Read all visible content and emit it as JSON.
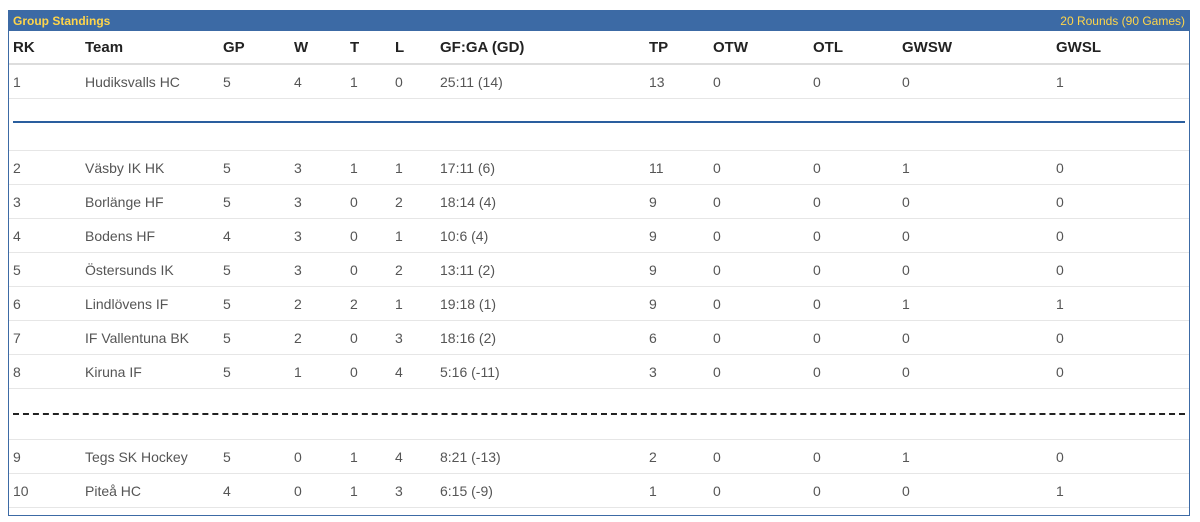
{
  "header": {
    "title": "Group Standings",
    "meta": "20 Rounds (90 Games)"
  },
  "columns": {
    "rk": "RK",
    "team": "Team",
    "gp": "GP",
    "w": "W",
    "t": "T",
    "l": "L",
    "gf": "GF:GA (GD)",
    "tp": "TP",
    "otw": "OTW",
    "otl": "OTL",
    "gwsw": "GWSW",
    "gwsl": "GWSL"
  },
  "rows": [
    {
      "rk": "1",
      "team": "Hudiksvalls HC",
      "gp": "5",
      "w": "4",
      "t": "1",
      "l": "0",
      "gf": "25:11 (14)",
      "tp": "13",
      "otw": "0",
      "otl": "0",
      "gwsw": "0",
      "gwsl": "1"
    },
    {
      "rk": "2",
      "team": "Väsby IK HK",
      "gp": "5",
      "w": "3",
      "t": "1",
      "l": "1",
      "gf": "17:11 (6)",
      "tp": "11",
      "otw": "0",
      "otl": "0",
      "gwsw": "1",
      "gwsl": "0"
    },
    {
      "rk": "3",
      "team": "Borlänge HF",
      "gp": "5",
      "w": "3",
      "t": "0",
      "l": "2",
      "gf": "18:14 (4)",
      "tp": "9",
      "otw": "0",
      "otl": "0",
      "gwsw": "0",
      "gwsl": "0"
    },
    {
      "rk": "4",
      "team": "Bodens HF",
      "gp": "4",
      "w": "3",
      "t": "0",
      "l": "1",
      "gf": "10:6 (4)",
      "tp": "9",
      "otw": "0",
      "otl": "0",
      "gwsw": "0",
      "gwsl": "0"
    },
    {
      "rk": "5",
      "team": "Östersunds IK",
      "gp": "5",
      "w": "3",
      "t": "0",
      "l": "2",
      "gf": "13:11 (2)",
      "tp": "9",
      "otw": "0",
      "otl": "0",
      "gwsw": "0",
      "gwsl": "0"
    },
    {
      "rk": "6",
      "team": "Lindlövens IF",
      "gp": "5",
      "w": "2",
      "t": "2",
      "l": "1",
      "gf": "19:18 (1)",
      "tp": "9",
      "otw": "0",
      "otl": "0",
      "gwsw": "1",
      "gwsl": "1"
    },
    {
      "rk": "7",
      "team": "IF Vallentuna BK",
      "gp": "5",
      "w": "2",
      "t": "0",
      "l": "3",
      "gf": "18:16 (2)",
      "tp": "6",
      "otw": "0",
      "otl": "0",
      "gwsw": "0",
      "gwsl": "0"
    },
    {
      "rk": "8",
      "team": "Kiruna IF",
      "gp": "5",
      "w": "1",
      "t": "0",
      "l": "4",
      "gf": "5:16 (-11)",
      "tp": "3",
      "otw": "0",
      "otl": "0",
      "gwsw": "0",
      "gwsl": "0"
    },
    {
      "rk": "9",
      "team": "Tegs SK Hockey",
      "gp": "5",
      "w": "0",
      "t": "1",
      "l": "4",
      "gf": "8:21 (-13)",
      "tp": "2",
      "otw": "0",
      "otl": "0",
      "gwsw": "1",
      "gwsl": "0"
    },
    {
      "rk": "10",
      "team": "Piteå HC",
      "gp": "4",
      "w": "0",
      "t": "1",
      "l": "3",
      "gf": "6:15 (-9)",
      "tp": "1",
      "otw": "0",
      "otl": "0",
      "gwsw": "0",
      "gwsl": "1"
    }
  ],
  "colors": {
    "header_bg": "#3c6aa5",
    "header_text": "#ffd54a",
    "solid_separator": "#2a5e9e",
    "dashed_separator": "#222222"
  }
}
